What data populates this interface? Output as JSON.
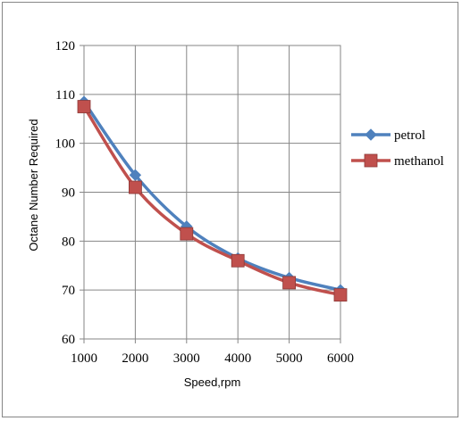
{
  "chart_data": {
    "type": "line",
    "title": "",
    "xlabel": "Speed,rpm",
    "ylabel": "Octane Number Required",
    "x": [
      1000,
      2000,
      3000,
      4000,
      5000,
      6000
    ],
    "xlim": [
      1000,
      6000
    ],
    "ylim": [
      60,
      120
    ],
    "xticks": [
      "1000",
      "2000",
      "3000",
      "4000",
      "5000",
      "6000"
    ],
    "yticks": [
      "60",
      "70",
      "80",
      "90",
      "100",
      "110",
      "120"
    ],
    "grid": true,
    "legend_position": "right",
    "series": [
      {
        "name": "petrol",
        "values": [
          108.5,
          93.5,
          83,
          76.5,
          72.5,
          70
        ],
        "color": "#4F81BD",
        "marker": "diamond"
      },
      {
        "name": "methanol",
        "values": [
          107.5,
          91,
          81.5,
          76,
          71.5,
          69
        ],
        "color": "#C0504D",
        "marker": "square"
      }
    ]
  }
}
